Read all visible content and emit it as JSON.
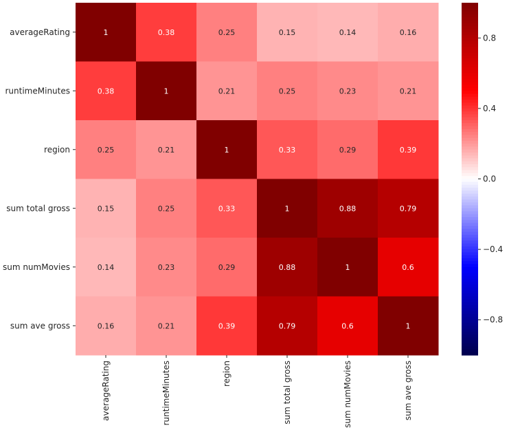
{
  "chart_data": {
    "type": "heatmap",
    "title": "",
    "xlabel": "",
    "ylabel": "",
    "rows": [
      "averageRating",
      "runtimeMinutes",
      "region",
      "sum total gross",
      "sum numMovies",
      "sum ave gross"
    ],
    "columns": [
      "averageRating",
      "runtimeMinutes",
      "region",
      "sum total gross",
      "sum numMovies",
      "sum ave gross"
    ],
    "values": [
      [
        1,
        0.38,
        0.25,
        0.15,
        0.14,
        0.16
      ],
      [
        0.38,
        1,
        0.21,
        0.25,
        0.23,
        0.21
      ],
      [
        0.25,
        0.21,
        1,
        0.33,
        0.29,
        0.39
      ],
      [
        0.15,
        0.25,
        0.33,
        1,
        0.88,
        0.79
      ],
      [
        0.14,
        0.23,
        0.29,
        0.88,
        1,
        0.6
      ],
      [
        0.16,
        0.21,
        0.39,
        0.79,
        0.6,
        1
      ]
    ],
    "annotations": [
      [
        "1",
        "0.38",
        "0.25",
        "0.15",
        "0.14",
        "0.16"
      ],
      [
        "0.38",
        "1",
        "0.21",
        "0.25",
        "0.23",
        "0.21"
      ],
      [
        "0.25",
        "0.21",
        "1",
        "0.33",
        "0.29",
        "0.39"
      ],
      [
        "0.15",
        "0.25",
        "0.33",
        "1",
        "0.88",
        "0.79"
      ],
      [
        "0.14",
        "0.23",
        "0.29",
        "0.88",
        "1",
        "0.6"
      ],
      [
        "0.16",
        "0.21",
        "0.39",
        "0.79",
        "0.6",
        "1"
      ]
    ],
    "colorbar": {
      "range": [
        -1,
        1
      ],
      "ticks": [
        0.8,
        0.4,
        0.0,
        -0.4,
        -0.8
      ],
      "tick_labels": [
        "0.8",
        "0.4",
        "0.0",
        "−0.4",
        "−0.8"
      ],
      "colormap": "seismic",
      "placement": "right"
    }
  }
}
